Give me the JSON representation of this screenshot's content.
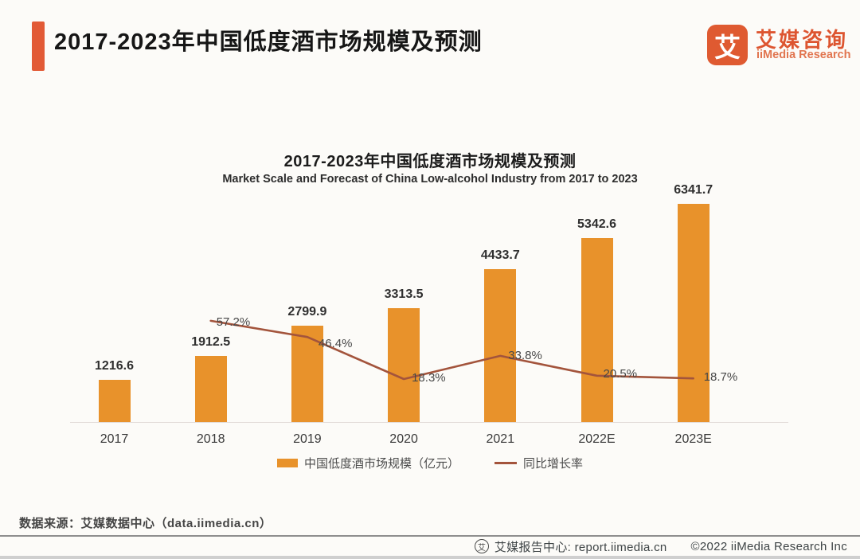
{
  "page": {
    "header": {
      "title": "2017-2023年中国低度酒市场规模及预测"
    },
    "logo": {
      "glyph": "艾",
      "name_cn": "艾媒咨询",
      "name_en": "iiMedia Research"
    },
    "footer": {
      "source": "数据来源：艾媒数据中心（data.iimedia.cn）",
      "report_center": "艾媒报告中心: report.iimedia.cn",
      "copyright": "©2022  iiMedia Research Inc"
    }
  },
  "chart_data": {
    "type": "bar+line",
    "title": "2017-2023年中国低度酒市场规模及预测",
    "subtitle": "Market Scale and Forecast of China Low-alcohol Industry from 2017 to 2023",
    "categories": [
      "2017",
      "2018",
      "2019",
      "2020",
      "2021",
      "2022E",
      "2023E"
    ],
    "series": [
      {
        "name": "中国低度酒市场规模（亿元）",
        "type": "bar",
        "unit": "亿元",
        "values": [
          1216.6,
          1912.5,
          2799.9,
          3313.5,
          4433.7,
          5342.6,
          6341.7
        ]
      },
      {
        "name": "同比增长率",
        "type": "line",
        "unit": "%",
        "values": [
          null,
          57.2,
          46.4,
          18.3,
          33.8,
          20.5,
          18.7
        ]
      }
    ],
    "legend": [
      {
        "label": "中国低度酒市场规模（亿元）",
        "type": "bar"
      },
      {
        "label": "同比增长率",
        "type": "line"
      }
    ],
    "legend_position": "bottom",
    "grid": false,
    "colors": {
      "bar": "#E8922B",
      "line": "#A3543C",
      "accent": "#E25A36"
    }
  }
}
